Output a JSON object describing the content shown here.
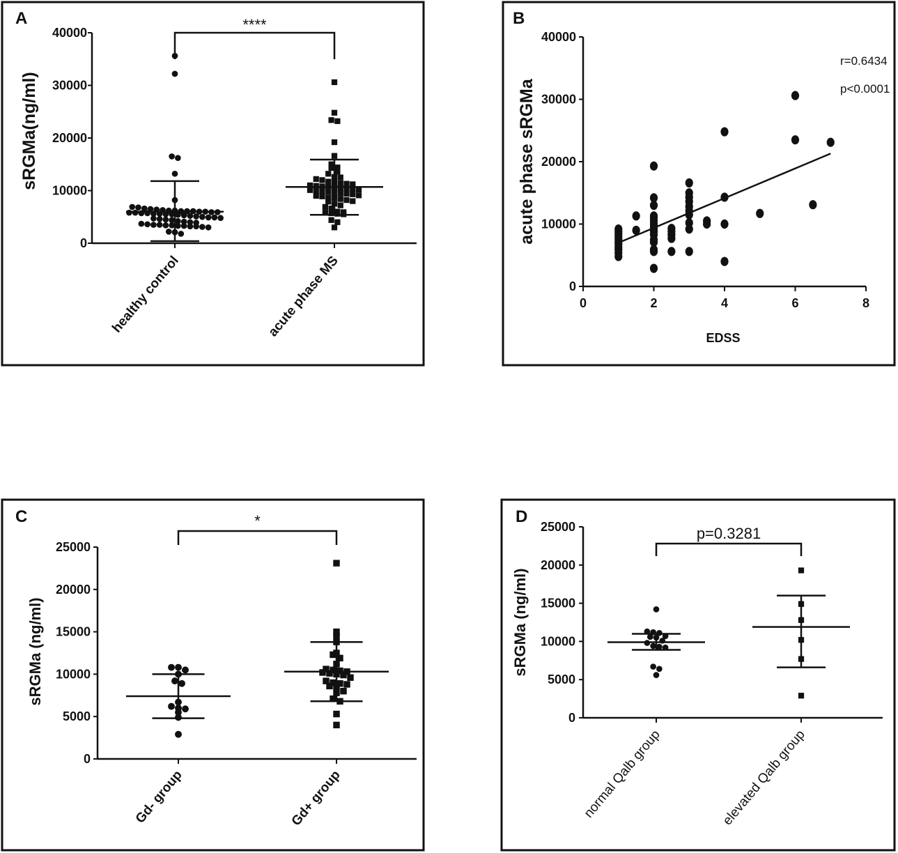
{
  "chart_data": [
    {
      "panel": "A",
      "type": "scatter",
      "title": "",
      "ylabel": "sRGMa(ng/ml)",
      "ylim": [
        0,
        40000
      ],
      "yticks": [
        "0",
        "10000",
        "20000",
        "30000",
        "40000"
      ],
      "categories": [
        "healthy control",
        "acute phase MS"
      ],
      "marker": [
        "circle",
        "square"
      ],
      "significance": "****",
      "groups": [
        {
          "name": "healthy control",
          "mean": 6000,
          "sd_low": 400,
          "sd_high": 11800,
          "values": [
            35600,
            32200,
            16500,
            16200,
            13200,
            8200,
            6900,
            6800,
            6600,
            6500,
            6400,
            6300,
            6200,
            6200,
            6100,
            6100,
            6100,
            6000,
            6000,
            5900,
            5900,
            5800,
            5800,
            5700,
            5700,
            5600,
            5600,
            5500,
            5500,
            5400,
            5300,
            5200,
            5100,
            5000,
            4900,
            4900,
            4800,
            4700,
            4600,
            4500,
            4400,
            4200,
            4100,
            4000,
            3900,
            3700,
            3600,
            3500,
            3500,
            3400,
            3400,
            3300,
            3300,
            3200,
            3200,
            3100,
            3000,
            2200,
            2100,
            1800
          ]
        },
        {
          "name": "acute phase MS",
          "mean": 10700,
          "sd_low": 5400,
          "sd_high": 15900,
          "values": [
            30600,
            24800,
            23400,
            23200,
            19200,
            16600,
            15000,
            14400,
            14300,
            13600,
            13200,
            12600,
            12500,
            12200,
            12000,
            11700,
            11600,
            11400,
            11300,
            11200,
            11000,
            10900,
            10800,
            10700,
            10600,
            10500,
            10400,
            10300,
            10200,
            10100,
            10000,
            9900,
            9800,
            9600,
            9500,
            9400,
            9300,
            9100,
            9000,
            8900,
            8700,
            8600,
            8400,
            8200,
            8000,
            7900,
            7500,
            7200,
            6900,
            6600,
            6000,
            5900,
            5800,
            5700,
            5600,
            5500,
            4400,
            4000,
            3000
          ]
        }
      ]
    },
    {
      "panel": "B",
      "type": "scatter",
      "title": "",
      "xlabel": "EDSS",
      "ylabel": "acute phase sRGMa",
      "xlim": [
        0,
        8
      ],
      "ylim": [
        0,
        40000
      ],
      "xticks": [
        "0",
        "2",
        "4",
        "6",
        "8"
      ],
      "yticks": [
        "0",
        "10000",
        "20000",
        "30000",
        "40000"
      ],
      "annotations": [
        "r=0.6434",
        "p<0.0001"
      ],
      "fit_line": [
        [
          1,
          7000
        ],
        [
          7,
          21300
        ]
      ],
      "points": [
        [
          1,
          9200
        ],
        [
          1,
          8800
        ],
        [
          1,
          8400
        ],
        [
          1,
          8000
        ],
        [
          1,
          7600
        ],
        [
          1,
          7200
        ],
        [
          1,
          6800
        ],
        [
          1,
          6300
        ],
        [
          1,
          5900
        ],
        [
          1,
          5400
        ],
        [
          1,
          4800
        ],
        [
          1.5,
          11300
        ],
        [
          1.5,
          9000
        ],
        [
          2,
          19300
        ],
        [
          2,
          14200
        ],
        [
          2,
          13000
        ],
        [
          2,
          11300
        ],
        [
          2,
          11000
        ],
        [
          2,
          10500
        ],
        [
          2,
          10000
        ],
        [
          2,
          9500
        ],
        [
          2,
          9100
        ],
        [
          2,
          8800
        ],
        [
          2,
          8300
        ],
        [
          2,
          7500
        ],
        [
          2,
          7100
        ],
        [
          2,
          5900
        ],
        [
          2,
          5600
        ],
        [
          2,
          2900
        ],
        [
          2.5,
          9300
        ],
        [
          2.5,
          8800
        ],
        [
          2.5,
          8300
        ],
        [
          2.5,
          7700
        ],
        [
          2.5,
          5600
        ],
        [
          3,
          16600
        ],
        [
          3,
          15000
        ],
        [
          3,
          14300
        ],
        [
          3,
          13600
        ],
        [
          3,
          12800
        ],
        [
          3,
          12100
        ],
        [
          3,
          11500
        ],
        [
          3,
          10200
        ],
        [
          3,
          9200
        ],
        [
          3,
          5600
        ],
        [
          3.5,
          10500
        ],
        [
          3.5,
          10000
        ],
        [
          4,
          24800
        ],
        [
          4,
          14300
        ],
        [
          4,
          10000
        ],
        [
          4,
          4000
        ],
        [
          5,
          11700
        ],
        [
          6,
          30600
        ],
        [
          6,
          23500
        ],
        [
          6.5,
          13100
        ],
        [
          7,
          23100
        ]
      ]
    },
    {
      "panel": "C",
      "type": "scatter",
      "title": "",
      "ylabel": "sRGMa (ng/ml)",
      "ylim": [
        0,
        25000
      ],
      "yticks": [
        "0",
        "5000",
        "10000",
        "15000",
        "20000",
        "25000"
      ],
      "categories": [
        "Gd- group",
        "Gd+ group"
      ],
      "marker": [
        "circle",
        "square"
      ],
      "significance": "*",
      "groups": [
        {
          "name": "Gd- group",
          "mean": 7400,
          "sd_low": 4800,
          "sd_high": 10000,
          "values": [
            10800,
            10800,
            10500,
            10000,
            9200,
            8900,
            6700,
            6200,
            6000,
            5900,
            5500,
            4900,
            2900
          ]
        },
        {
          "name": "Gd+ group",
          "mean": 10300,
          "sd_low": 6800,
          "sd_high": 13800,
          "values": [
            23100,
            15000,
            14500,
            13800,
            12500,
            12300,
            11900,
            11200,
            10600,
            10500,
            10400,
            10300,
            10200,
            10100,
            10000,
            9900,
            9600,
            9200,
            9000,
            8900,
            8800,
            8600,
            8500,
            8000,
            7800,
            7100,
            6800,
            5300,
            4000
          ]
        }
      ]
    },
    {
      "panel": "D",
      "type": "scatter",
      "title": "",
      "ylabel": "sRGMa (ng/ml)",
      "ylim": [
        0,
        25000
      ],
      "yticks": [
        "0",
        "5000",
        "10000",
        "15000",
        "20000",
        "25000"
      ],
      "categories": [
        "normal Qalb group",
        "elevated Qalb group"
      ],
      "marker": [
        "circle",
        "square"
      ],
      "significance": "p=0.3281",
      "groups": [
        {
          "name": "normal Qalb group",
          "mean": 9900,
          "sd_low": 8900,
          "sd_high": 11000,
          "values": [
            14200,
            11300,
            11200,
            11100,
            10700,
            10600,
            10500,
            10100,
            9800,
            9400,
            9300,
            9200,
            6700,
            6400,
            5600
          ]
        },
        {
          "name": "elevated Qalb group",
          "mean": 11900,
          "sd_low": 6600,
          "sd_high": 16000,
          "values": [
            19300,
            14900,
            12800,
            10200,
            7700,
            2900
          ]
        }
      ]
    }
  ]
}
